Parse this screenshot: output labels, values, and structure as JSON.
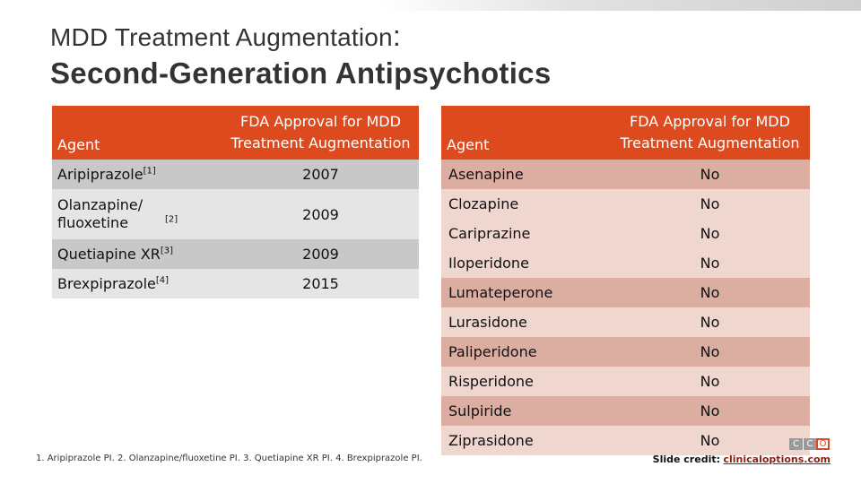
{
  "title": {
    "line1": "MDD Treatment Augmentation",
    "line1_colon": ":",
    "line2": "Second-Generation Antipsychotics"
  },
  "left_table": {
    "header_agent": "Agent",
    "header_fda": "FDA Approval for MDD Treatment Augmentation",
    "rows": [
      {
        "agent": "Aripiprazole",
        "ref": "[1]",
        "year": "2007"
      },
      {
        "agent": "Olanzapine/ fluoxetine",
        "ref": "[2]",
        "year": "2009"
      },
      {
        "agent": "Quetiapine XR",
        "ref": "[3]",
        "year": "2009"
      },
      {
        "agent": "Brexpiprazole",
        "ref": "[4]",
        "year": "2015"
      }
    ]
  },
  "right_table": {
    "header_agent": "Agent",
    "header_fda": "FDA Approval for MDD Treatment Augmentation",
    "rows": [
      {
        "agent": "Asenapine",
        "approval": "No"
      },
      {
        "agent": "Clozapine",
        "approval": "No"
      },
      {
        "agent": "Cariprazine",
        "approval": "No"
      },
      {
        "agent": "Iloperidone",
        "approval": "No"
      },
      {
        "agent": "Lumateperone",
        "approval": "No"
      },
      {
        "agent": "Lurasidone",
        "approval": "No"
      },
      {
        "agent": "Paliperidone",
        "approval": "No"
      },
      {
        "agent": "Risperidone",
        "approval": "No"
      },
      {
        "agent": "Sulpiride",
        "approval": "No"
      },
      {
        "agent": "Ziprasidone",
        "approval": "No"
      }
    ]
  },
  "footnote": "1. Aripiprazole PI. 2. Olanzapine/fluoxetine PI. 3. Quetiapine XR PI. 4. Brexpiprazole PI.",
  "logo": {
    "l1": "C",
    "l2": "C",
    "l3": "O"
  },
  "credit": {
    "label": "Slide credit:",
    "link": "clinicaloptions.com"
  },
  "colors": {
    "accent": "#dd4a1e",
    "left_row_dark": "#c8c8c8",
    "left_row_light": "#e5e5e5",
    "right_row_dark": "#dcaea2",
    "right_row_light": "#efd6cf"
  }
}
